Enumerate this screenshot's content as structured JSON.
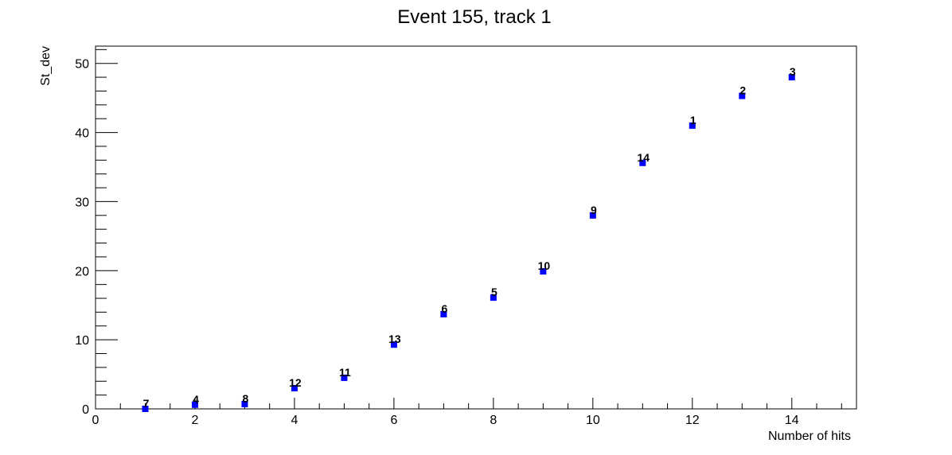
{
  "chart_data": {
    "type": "scatter",
    "title": "Event 155, track 1",
    "xlabel": "Number of hits",
    "ylabel": "St_dev",
    "xlim": [
      0,
      15.3
    ],
    "ylim": [
      0,
      52.5
    ],
    "xticks": [
      0,
      2,
      4,
      6,
      8,
      10,
      12,
      14
    ],
    "yticks": [
      0,
      10,
      20,
      30,
      40,
      50
    ],
    "grid": false,
    "marker_color": "#0000ff",
    "points": [
      {
        "x": 1,
        "y": 0.0,
        "label": "7"
      },
      {
        "x": 2,
        "y": 0.6,
        "label": "4"
      },
      {
        "x": 3,
        "y": 0.7,
        "label": "8"
      },
      {
        "x": 4,
        "y": 3.0,
        "label": "12"
      },
      {
        "x": 5,
        "y": 4.5,
        "label": "11"
      },
      {
        "x": 6,
        "y": 9.3,
        "label": "13"
      },
      {
        "x": 7,
        "y": 13.7,
        "label": "6"
      },
      {
        "x": 8,
        "y": 16.1,
        "label": "5"
      },
      {
        "x": 9,
        "y": 19.9,
        "label": "10"
      },
      {
        "x": 10,
        "y": 28.0,
        "label": "9"
      },
      {
        "x": 11,
        "y": 35.6,
        "label": "14"
      },
      {
        "x": 12,
        "y": 41.0,
        "label": "1"
      },
      {
        "x": 13,
        "y": 45.3,
        "label": "2"
      },
      {
        "x": 14,
        "y": 48.0,
        "label": "3"
      }
    ]
  }
}
